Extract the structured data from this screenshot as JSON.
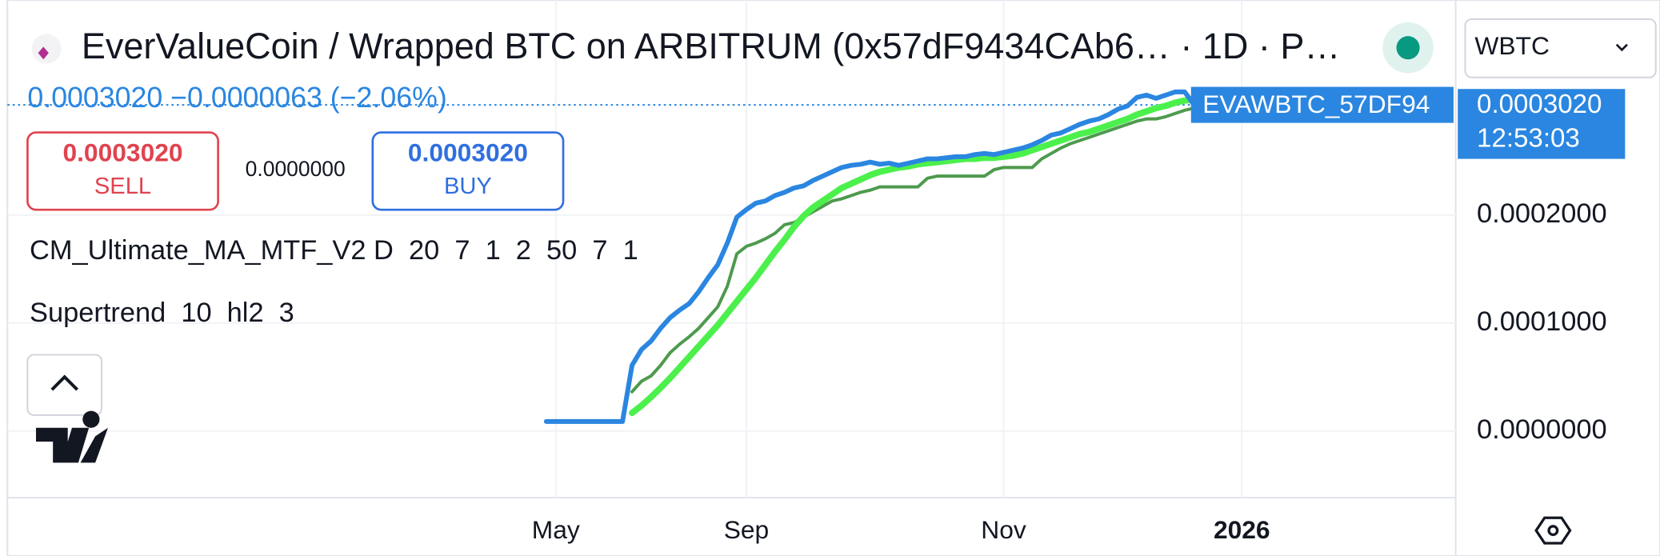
{
  "header": {
    "title": "EverValueCoin / Wrapped BTC on ARBITRUM (0x57dF9434CAb6… · 1D · P…"
  },
  "legend": "0.0003020 −0.0000063 (−2.06%)",
  "trade": {
    "sell_price": "0.0003020",
    "sell": "SELL",
    "spread": "0.0000000",
    "buy_price": "0.0003020",
    "buy": "BUY"
  },
  "symbol_menu": "WBTC",
  "chart_data": {
    "type": "line",
    "categories": [
      null,
      "May",
      null,
      null,
      null,
      null,
      null,
      null,
      null,
      null,
      null,
      null,
      null,
      null,
      null,
      null,
      null,
      null,
      null,
      null,
      null,
      "Sep",
      null,
      null,
      null,
      null,
      null,
      null,
      null,
      null,
      null,
      null,
      null,
      null,
      null,
      null,
      null,
      null,
      null,
      null,
      null,
      null,
      null,
      null,
      null,
      null,
      null,
      null,
      "Nov",
      null,
      null,
      null,
      null,
      null,
      null,
      null,
      null,
      null,
      null,
      null,
      null,
      null,
      null,
      null,
      null,
      null,
      null,
      null,
      null,
      null,
      null,
      null,
      null,
      "2026"
    ],
    "series": [
      {
        "color": "#2a86e0",
        "values": [
          8.8e-06,
          8.8e-06,
          8.8e-06,
          8.8e-06,
          8.8e-06,
          8.8e-06,
          8.8e-06,
          8.8e-06,
          8.8e-06,
          6.08e-05,
          7.55e-05,
          8.33e-05,
          9.51e-05,
          0.000105,
          0.000112,
          0.000118,
          0.000129,
          0.000142,
          0.000154,
          0.000174,
          0.000198,
          0.000205,
          0.000211,
          0.000213,
          0.000218,
          0.000221,
          0.000225,
          0.000227,
          0.000232,
          0.000236,
          0.00024,
          0.000244,
          0.000246,
          0.000247,
          0.000249,
          0.000247,
          0.000248,
          0.000246,
          0.000248,
          0.00025,
          0.000252,
          0.000252,
          0.000253,
          0.000254,
          0.000254,
          0.000256,
          0.000257,
          0.000256,
          0.000258,
          0.00026,
          0.000262,
          0.000265,
          0.000269,
          0.000274,
          0.000276,
          0.00028,
          0.000284,
          0.000287,
          0.000289,
          0.000293,
          0.000298,
          0.000301,
          0.000309,
          0.000311,
          0.000308,
          0.000311,
          0.000314,
          0.000314,
          0.000302,
          null,
          null,
          null,
          null,
          null
        ]
      },
      {
        "name": "CM_Ultimate_MA_MTF_V2 D  20  7  1  2  50  7  1",
        "color": "#4cf04c",
        "values": [
          null,
          null,
          null,
          null,
          null,
          null,
          null,
          null,
          null,
          1.67e-05,
          2.35e-05,
          3.14e-05,
          4e-05,
          4.9e-05,
          5.88e-05,
          6.86e-05,
          7.84e-05,
          8.82e-05,
          9.8e-05,
          0.000109,
          0.00012,
          0.000131,
          0.000142,
          0.000154,
          0.000166,
          0.000177,
          0.000189,
          0.000199,
          0.000207,
          0.000213,
          0.000219,
          0.000225,
          0.000229,
          0.000233,
          0.000237,
          0.00024,
          0.000242,
          0.000244,
          0.000245,
          0.000247,
          0.000248,
          0.000249,
          0.00025,
          0.000251,
          0.000252,
          0.000252,
          0.000253,
          0.000253,
          0.000254,
          0.000255,
          0.000257,
          0.00026,
          0.000263,
          0.000266,
          0.000269,
          0.000272,
          0.000275,
          0.000277,
          0.00028,
          0.000283,
          0.000286,
          0.000289,
          0.000293,
          0.000296,
          0.000299,
          0.000301,
          0.000304,
          0.000306,
          0.000307,
          null,
          null,
          null,
          null,
          null
        ]
      },
      {
        "name": "Supertrend  10  hl2  3",
        "color": "#4e9a4e",
        "values": [
          null,
          null,
          null,
          null,
          null,
          null,
          null,
          null,
          null,
          3.63e-05,
          4.61e-05,
          5.1e-05,
          6.08e-05,
          7.25e-05,
          8.04e-05,
          8.73e-05,
          9.51e-05,
          0.000105,
          0.000115,
          0.000134,
          0.000164,
          0.000171,
          0.000174,
          0.000178,
          0.000183,
          0.000191,
          0.000193,
          0.000198,
          0.000203,
          0.000208,
          0.000213,
          0.000215,
          0.000218,
          0.000221,
          0.000223,
          0.000226,
          0.000226,
          0.000226,
          0.000226,
          0.000226,
          0.000234,
          0.000236,
          0.000236,
          0.000236,
          0.000236,
          0.000236,
          0.000236,
          0.000242,
          0.000244,
          0.000244,
          0.000244,
          0.000244,
          0.000252,
          0.000257,
          0.000262,
          0.000266,
          0.000269,
          0.000272,
          0.000275,
          0.000278,
          0.000281,
          0.000284,
          0.000287,
          0.000289,
          0.000289,
          0.000291,
          0.000294,
          0.000297,
          0.000299,
          null,
          null,
          null,
          null,
          null
        ]
      }
    ],
    "ylim": [
      -6e-05,
      0.00039
    ],
    "yticks": [
      {
        "value": 0,
        "label": "0.0000000"
      },
      {
        "value": 0.0001,
        "label": "0.0001000"
      },
      {
        "value": 0.0002,
        "label": "0.0002000"
      }
    ],
    "grid": true,
    "price_label": {
      "value": 0.000302,
      "label": "0.0003020"
    },
    "symbol_badge": "EVAWBTC_57DF94",
    "time_label": "12:53:03"
  }
}
